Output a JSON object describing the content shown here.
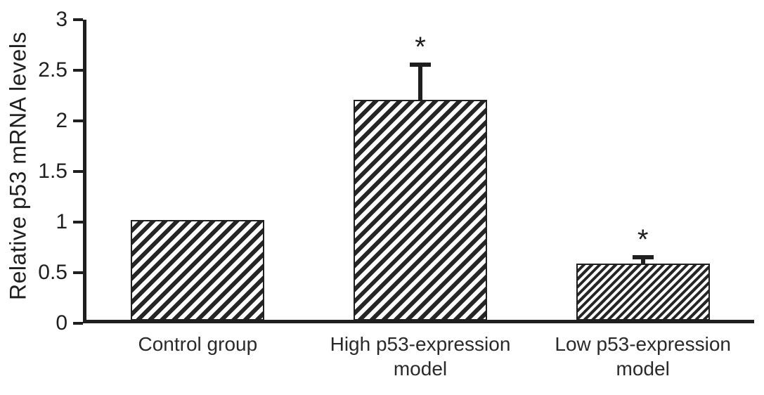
{
  "chart_data": {
    "type": "bar",
    "title": "",
    "xlabel": "",
    "ylabel": "Relative p53 mRNA levels",
    "ylim": [
      0,
      3
    ],
    "yticks": [
      0,
      0.5,
      1,
      1.5,
      2,
      2.5,
      3
    ],
    "categories": [
      "Control group",
      "High p53-expression model",
      "Low p53-expression model"
    ],
    "values": [
      1.0,
      2.2,
      0.57
    ],
    "errors": [
      0,
      0.37,
      0.08
    ],
    "annotations": [
      "",
      "*",
      "*"
    ],
    "legend": null,
    "grid": false,
    "bar_style": "diagonal-hatch",
    "ink_color": "#1f1f1f",
    "background_color": "#ffffff"
  }
}
